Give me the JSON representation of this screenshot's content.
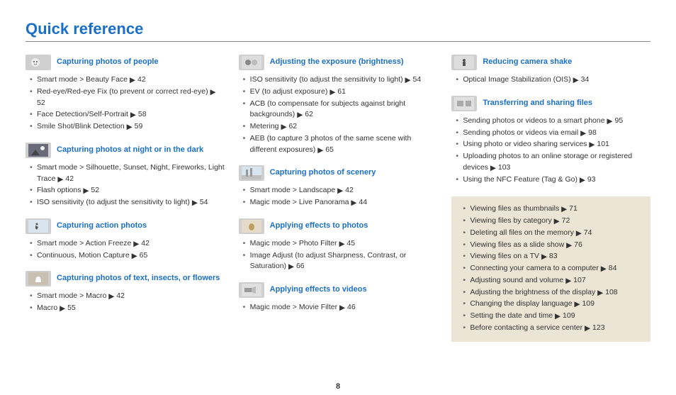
{
  "title": "Quick reference",
  "page_number": "8",
  "arrow": "▶",
  "columns": [
    {
      "sections": [
        {
          "icon": "face",
          "title": "Capturing photos of people",
          "items": [
            {
              "text": "Smart mode > Beauty Face",
              "page": "42"
            },
            {
              "text": "Red-eye/Red-eye Fix (to prevent or correct red-eye)",
              "page": "52"
            },
            {
              "text": "Face Detection/Self-Portrait",
              "page": "58"
            },
            {
              "text": "Smile Shot/Blink Detection",
              "page": "59"
            }
          ]
        },
        {
          "icon": "night",
          "title": "Capturing photos at night or in the dark",
          "items": [
            {
              "text": "Smart mode > Silhouette, Sunset, Night, Fireworks, Light Trace",
              "page": "42"
            },
            {
              "text": "Flash options",
              "page": "52"
            },
            {
              "text": "ISO sensitivity (to adjust the sensitivity to light)",
              "page": "54"
            }
          ]
        },
        {
          "icon": "action",
          "title": "Capturing action photos",
          "items": [
            {
              "text": "Smart mode > Action Freeze",
              "page": "42"
            },
            {
              "text": "Continuous, Motion Capture",
              "page": "65"
            }
          ]
        },
        {
          "icon": "macro",
          "title": "Capturing photos of text, insects, or flowers",
          "items": [
            {
              "text": "Smart mode > Macro",
              "page": "42"
            },
            {
              "text": "Macro",
              "page": "55"
            }
          ]
        }
      ]
    },
    {
      "sections": [
        {
          "icon": "exposure",
          "title": "Adjusting the exposure (brightness)",
          "items": [
            {
              "text": "ISO sensitivity (to adjust the sensitivity to light)",
              "page": "54"
            },
            {
              "text": "EV (to adjust exposure)",
              "page": "61"
            },
            {
              "text": "ACB (to compensate for subjects against bright backgrounds)",
              "page": "62"
            },
            {
              "text": "Metering",
              "page": "62"
            },
            {
              "text": "AEB (to capture 3 photos of the same scene with different exposures)",
              "page": "65"
            }
          ]
        },
        {
          "icon": "scenery",
          "title": "Capturing photos of scenery",
          "items": [
            {
              "text": "Smart mode > Landscape",
              "page": "42"
            },
            {
              "text": "Magic mode > Live Panorama",
              "page": "44"
            }
          ]
        },
        {
          "icon": "effects-photo",
          "title": "Applying effects to photos",
          "items": [
            {
              "text": "Magic mode > Photo Filter",
              "page": "45"
            },
            {
              "text": "Image Adjust (to adjust Sharpness, Contrast, or Saturation)",
              "page": "66"
            }
          ]
        },
        {
          "icon": "effects-video",
          "title": "Applying effects to videos",
          "items": [
            {
              "text": "Magic mode > Movie Filter",
              "page": "46"
            }
          ]
        }
      ]
    },
    {
      "sections": [
        {
          "icon": "shake",
          "title": "Reducing camera shake",
          "items": [
            {
              "text": "Optical Image Stabilization (OIS)",
              "page": "34"
            }
          ]
        },
        {
          "icon": "transfer",
          "title": "Transferring and sharing files",
          "items": [
            {
              "text": "Sending photos or videos to a smart phone",
              "page": "95"
            },
            {
              "text": "Sending photos or videos via email",
              "page": "98"
            },
            {
              "text": "Using photo or video sharing services",
              "page": "101"
            },
            {
              "text": "Uploading photos to an online storage or registered devices",
              "page": "103"
            },
            {
              "text": "Using the NFC Feature (Tag & Go)",
              "page": "93"
            }
          ]
        }
      ],
      "box_items": [
        {
          "text": "Viewing files as thumbnails",
          "page": "71"
        },
        {
          "text": "Viewing files by category",
          "page": "72"
        },
        {
          "text": "Deleting all files on the memory",
          "page": "74"
        },
        {
          "text": "Viewing files as a slide show",
          "page": "76"
        },
        {
          "text": "Viewing files on a TV",
          "page": "83"
        },
        {
          "text": "Connecting your camera to a computer",
          "page": "84"
        },
        {
          "text": "Adjusting sound and volume",
          "page": "107"
        },
        {
          "text": "Adjusting the brightness of the display",
          "page": "108"
        },
        {
          "text": "Changing the display language",
          "page": "109"
        },
        {
          "text": "Setting the date and time",
          "page": "109"
        },
        {
          "text": "Before contacting a service center",
          "page": "123"
        }
      ]
    }
  ]
}
